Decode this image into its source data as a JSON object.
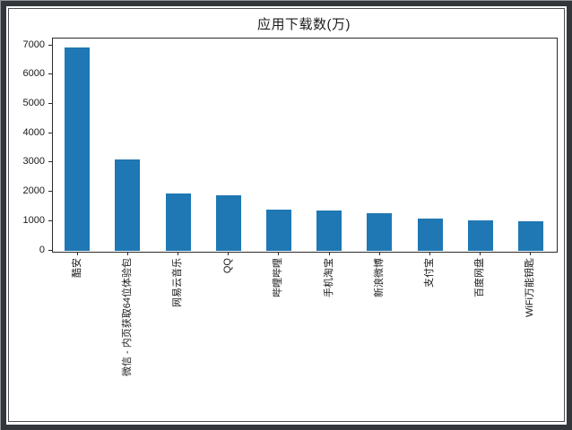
{
  "chart_data": {
    "type": "bar",
    "title": "应用下载数(万)",
    "categories": [
      "酷安",
      "微信 - 内页获取64位体验包",
      "网易云音乐",
      "QQ",
      "哔哩哔哩",
      "手机淘宝",
      "新浪微博",
      "支付宝",
      "百度网盘",
      "WiFi万能钥匙"
    ],
    "values": [
      6900,
      3100,
      1920,
      1880,
      1380,
      1360,
      1240,
      1080,
      1010,
      990
    ],
    "xlabel": "",
    "ylabel": "",
    "ylim": [
      0,
      7245
    ],
    "yticks": [
      0,
      1000,
      2000,
      3000,
      4000,
      5000,
      6000,
      7000
    ],
    "xtick_rotation": 90,
    "bar_color": "#1f77b4",
    "grid": false,
    "legend": null
  },
  "frame": {
    "band_color": "#33373c",
    "inner_line_color": "#4a4e53",
    "background": "#ffffff"
  }
}
